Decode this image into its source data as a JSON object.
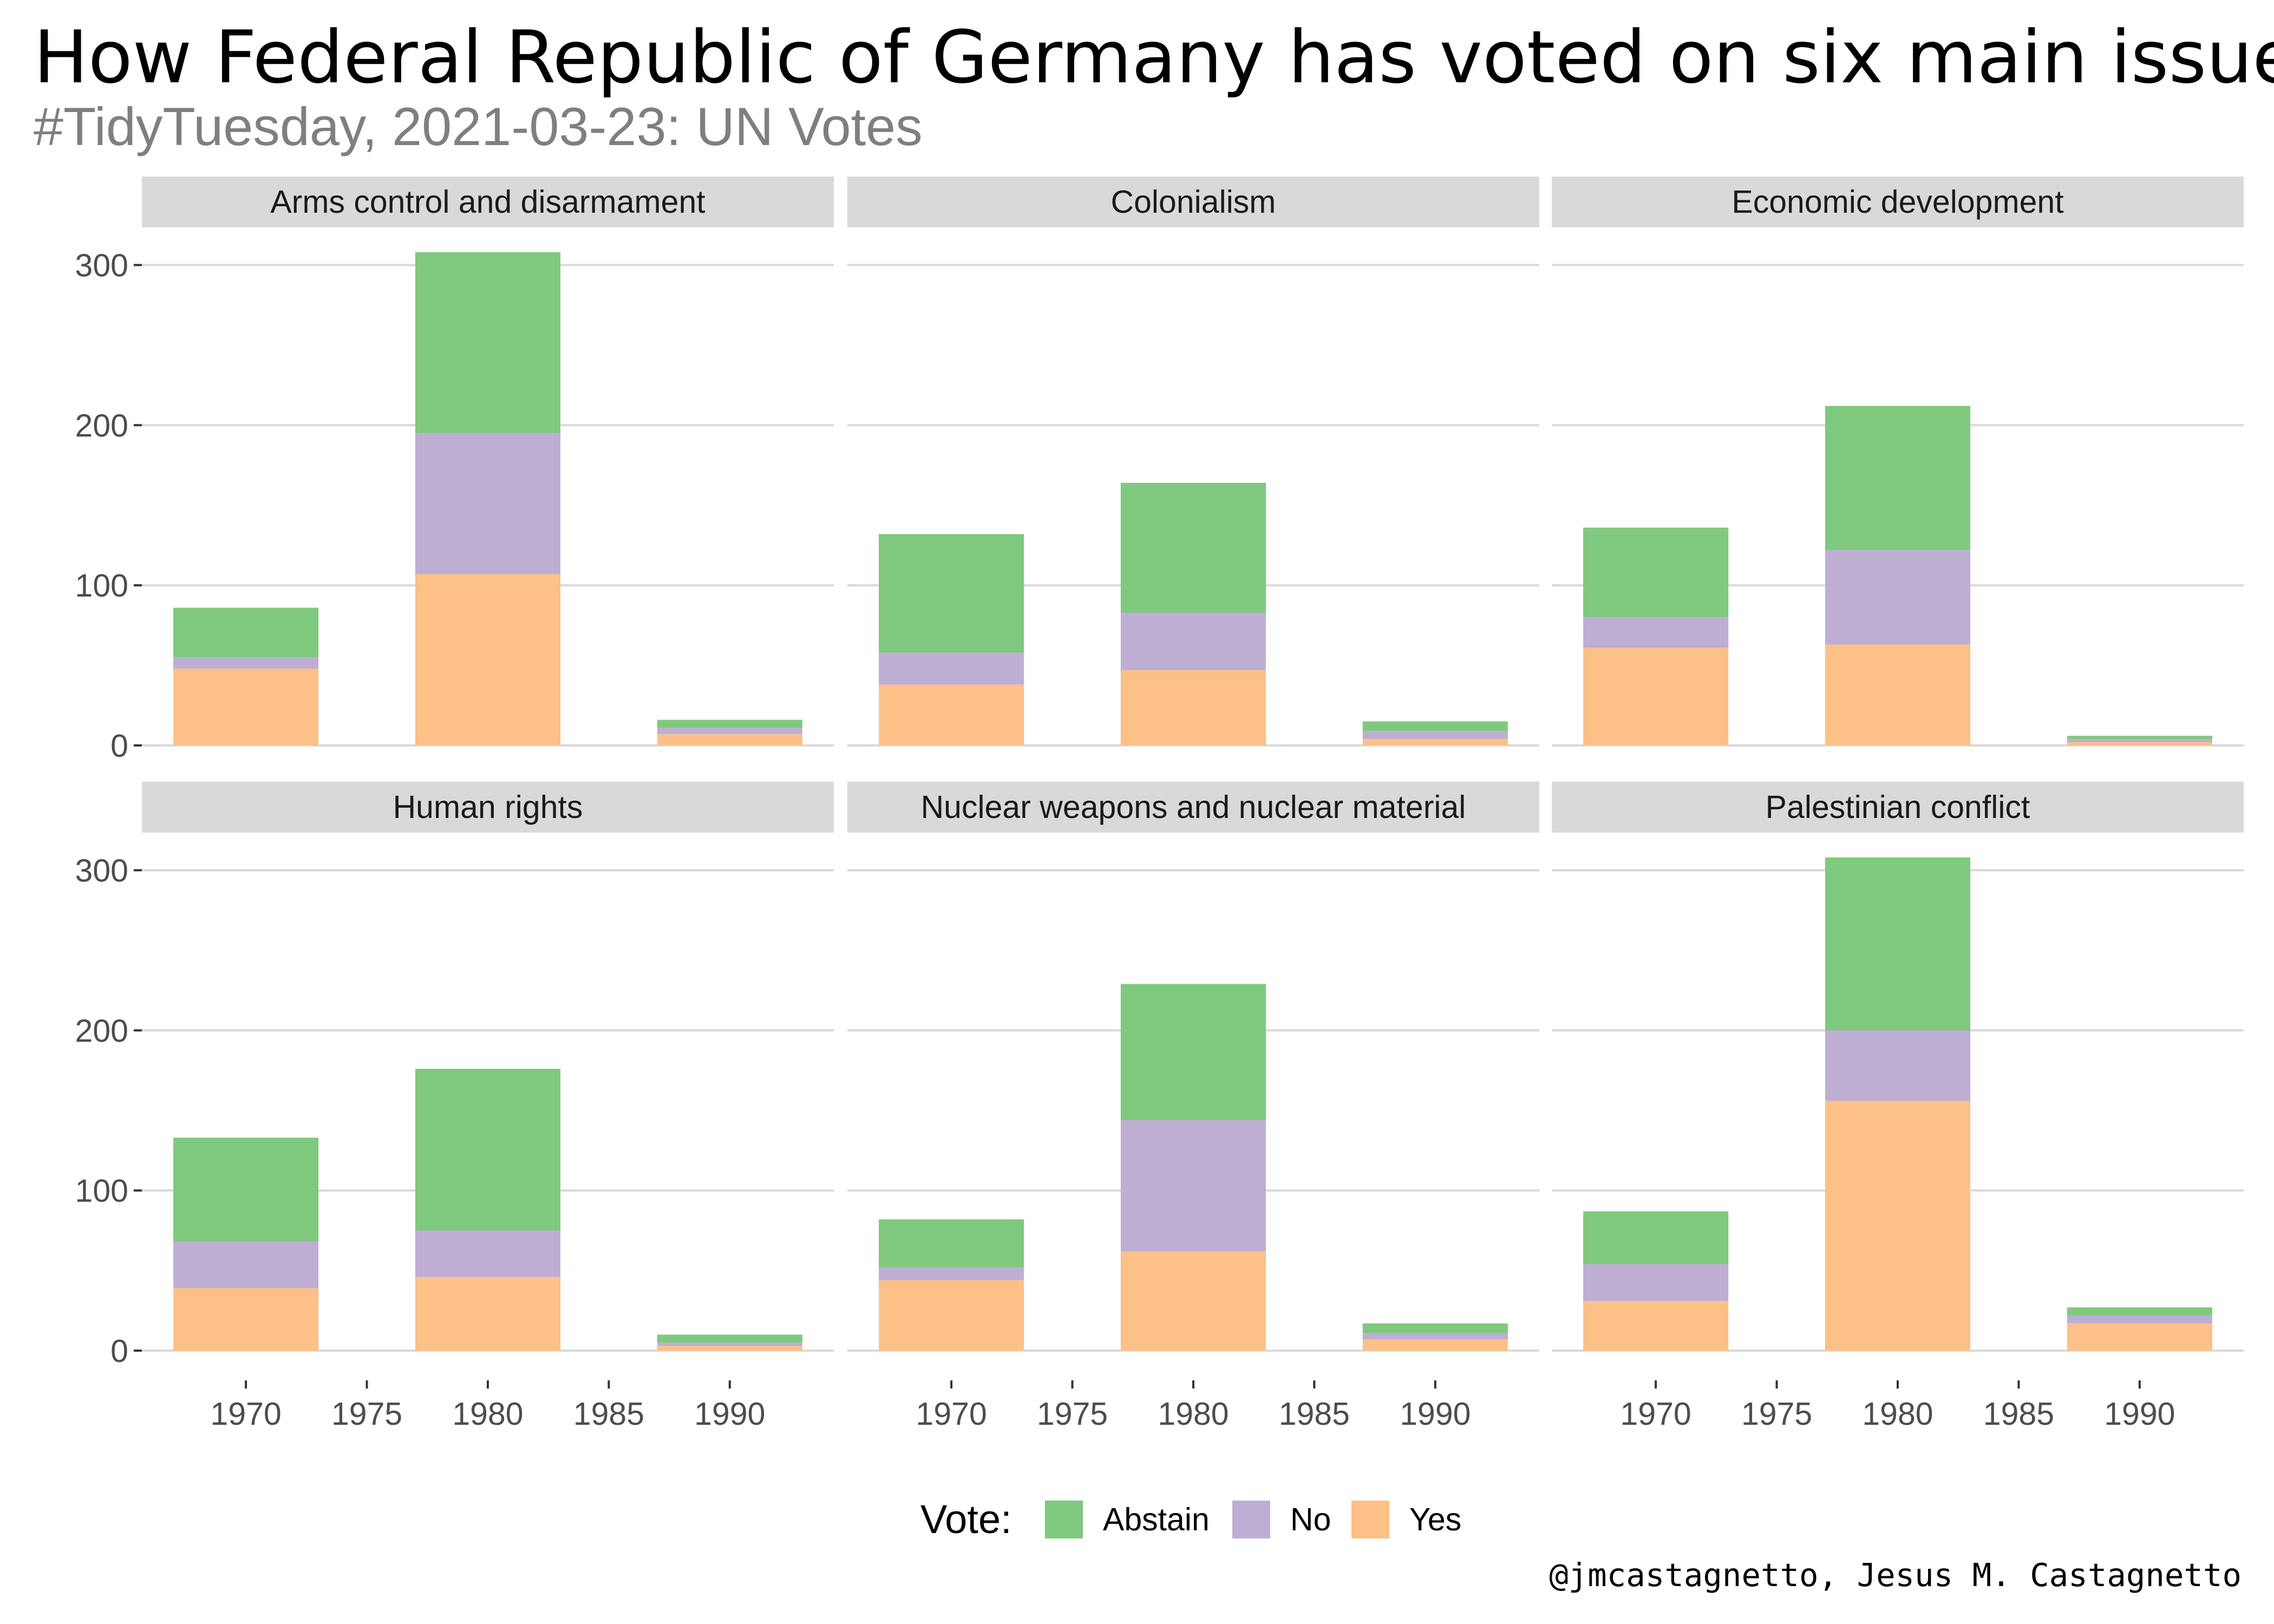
{
  "title": "How Federal Republic of Germany has voted on six main issues in",
  "subtitle": "#TidyTuesday, 2021-03-23: UN Votes",
  "caption": "@jmcastagnetto, Jesus M. Castagnetto",
  "legend": {
    "title": "Vote:",
    "items": [
      {
        "label": "Abstain",
        "color": "#7fc97f"
      },
      {
        "label": "No",
        "color": "#beaed4"
      },
      {
        "label": "Yes",
        "color": "#fdc086"
      }
    ]
  },
  "chart_data": {
    "type": "bar",
    "stacked": true,
    "facets": [
      "Arms control and disarmament",
      "Colonialism",
      "Economic development",
      "Human rights",
      "Nuclear weapons and nuclear material",
      "Palestinian conflict"
    ],
    "facet_layout": "2 rows x 3 columns",
    "x": [
      1970,
      1980,
      1990
    ],
    "x_ticks": [
      1970,
      1975,
      1980,
      1985,
      1990
    ],
    "y_ticks": [
      0,
      100,
      200,
      300
    ],
    "ylim": [
      0,
      320
    ],
    "xlim": [
      1965.7,
      1994.3
    ],
    "bar_width_years": 6,
    "series_order": [
      "Yes",
      "No",
      "Abstain"
    ],
    "legend_position": "bottom",
    "grid": "horizontal major lines",
    "panels": [
      {
        "facet": "Arms control and disarmament",
        "series": [
          {
            "name": "Yes",
            "values": [
              48,
              107,
              7
            ]
          },
          {
            "name": "No",
            "values": [
              7,
              88,
              4
            ]
          },
          {
            "name": "Abstain",
            "values": [
              31,
              113,
              5
            ]
          }
        ]
      },
      {
        "facet": "Colonialism",
        "series": [
          {
            "name": "Yes",
            "values": [
              38,
              47,
              4
            ]
          },
          {
            "name": "No",
            "values": [
              20,
              36,
              5
            ]
          },
          {
            "name": "Abstain",
            "values": [
              74,
              81,
              6
            ]
          }
        ]
      },
      {
        "facet": "Economic development",
        "series": [
          {
            "name": "Yes",
            "values": [
              61,
              63,
              2
            ]
          },
          {
            "name": "No",
            "values": [
              19,
              59,
              2
            ]
          },
          {
            "name": "Abstain",
            "values": [
              56,
              90,
              2
            ]
          }
        ]
      },
      {
        "facet": "Human rights",
        "series": [
          {
            "name": "Yes",
            "values": [
              39,
              46,
              3
            ]
          },
          {
            "name": "No",
            "values": [
              29,
              29,
              2
            ]
          },
          {
            "name": "Abstain",
            "values": [
              65,
              101,
              5
            ]
          }
        ]
      },
      {
        "facet": "Nuclear weapons and nuclear material",
        "series": [
          {
            "name": "Yes",
            "values": [
              44,
              62,
              7
            ]
          },
          {
            "name": "No",
            "values": [
              8,
              82,
              4
            ]
          },
          {
            "name": "Abstain",
            "values": [
              30,
              85,
              6
            ]
          }
        ]
      },
      {
        "facet": "Palestinian conflict",
        "series": [
          {
            "name": "Yes",
            "values": [
              31,
              156,
              17
            ]
          },
          {
            "name": "No",
            "values": [
              23,
              44,
              5
            ]
          },
          {
            "name": "Abstain",
            "values": [
              33,
              108,
              5
            ]
          }
        ]
      }
    ]
  }
}
